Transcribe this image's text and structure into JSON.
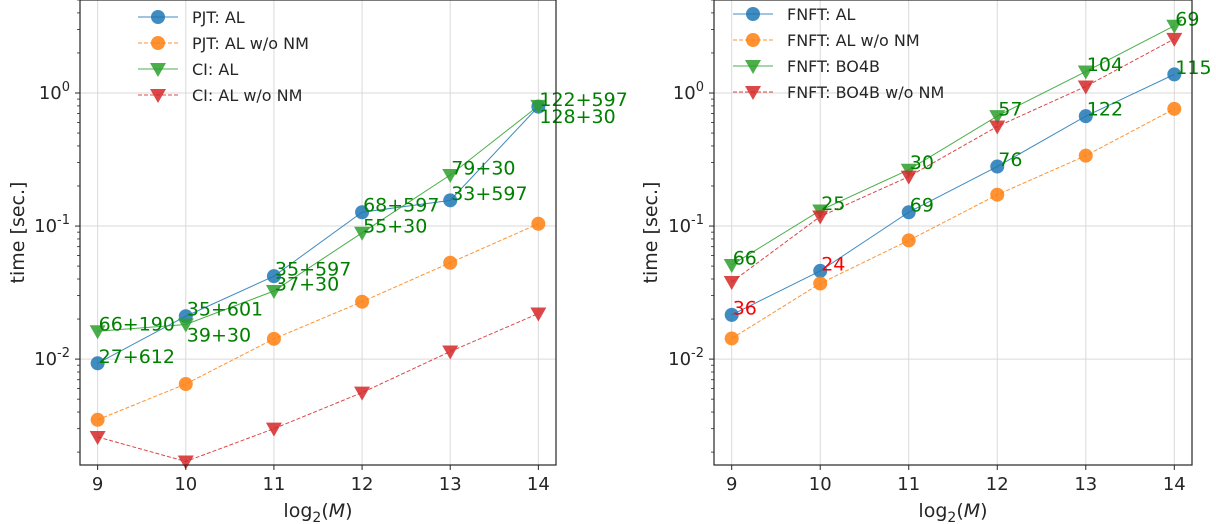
{
  "chart_data": [
    {
      "type": "line",
      "xlabel": "log2(M)",
      "ylabel": "time [sec.]",
      "yscale": "log",
      "xlim": [
        8.8,
        14.2
      ],
      "ylim": [
        0.0016,
        5.0
      ],
      "x": [
        9,
        10,
        11,
        12,
        13,
        14
      ],
      "grid": true,
      "legend_position": "upper-left",
      "series": [
        {
          "name": "PJT: AL",
          "color": "#1f77b4",
          "marker": "circle",
          "linestyle": "solid",
          "values": [
            0.0093,
            0.021,
            0.042,
            0.127,
            0.156,
            0.79
          ]
        },
        {
          "name": "PJT: AL w/o NM",
          "color": "#ff7f0e",
          "marker": "circle",
          "linestyle": "dashed",
          "values": [
            0.0035,
            0.0065,
            0.0142,
            0.027,
            0.053,
            0.104
          ]
        },
        {
          "name": "CI: AL",
          "color": "#2ca02c",
          "marker": "triangle-down",
          "linestyle": "solid",
          "values": [
            0.0162,
            0.0182,
            0.0325,
            0.089,
            0.242,
            0.8
          ]
        },
        {
          "name": "CI: AL w/o NM",
          "color": "#d62728",
          "marker": "triangle-down",
          "linestyle": "dashed",
          "values": [
            0.0026,
            0.0017,
            0.003,
            0.0056,
            0.0114,
            0.022
          ]
        }
      ],
      "annotations": [
        {
          "text": "27+612",
          "x": 9,
          "y": 0.0093,
          "dy": -0.5,
          "color": "#008000"
        },
        {
          "text": "66+190",
          "x": 9,
          "y": 0.0162,
          "dy": -0.5,
          "color": "#008000"
        },
        {
          "text": "35+601",
          "x": 10,
          "y": 0.021,
          "dy": -0.5,
          "color": "#008000"
        },
        {
          "text": "39+30",
          "x": 10,
          "y": 0.0182,
          "dy": 17,
          "color": "#008000"
        },
        {
          "text": "35+597",
          "x": 11,
          "y": 0.042,
          "dy": -0.5,
          "color": "#008000"
        },
        {
          "text": "37+30",
          "x": 11,
          "y": 0.0325,
          "dy": -0.5,
          "color": "#008000"
        },
        {
          "text": "68+597",
          "x": 12,
          "y": 0.127,
          "dy": -0.5,
          "color": "#008000"
        },
        {
          "text": "55+30",
          "x": 12,
          "y": 0.089,
          "dy": -0.5,
          "color": "#008000"
        },
        {
          "text": "79+30",
          "x": 13,
          "y": 0.242,
          "dy": -0.5,
          "color": "#008000"
        },
        {
          "text": "33+597",
          "x": 13,
          "y": 0.156,
          "dy": -0.5,
          "color": "#008000"
        },
        {
          "text": "122+597",
          "x": 14,
          "y": 0.79,
          "dy": -0.5,
          "color": "#008000"
        },
        {
          "text": "128+30",
          "x": 14,
          "y": 0.8,
          "dy": 17,
          "color": "#008000"
        }
      ]
    },
    {
      "type": "line",
      "xlabel": "log2(M)",
      "ylabel": "time [sec.]",
      "yscale": "log",
      "xlim": [
        8.8,
        14.2
      ],
      "ylim": [
        0.0016,
        5.0
      ],
      "x": [
        9,
        10,
        11,
        12,
        13,
        14
      ],
      "grid": true,
      "legend_position": "upper-left",
      "series": [
        {
          "name": "FNFT: AL",
          "color": "#1f77b4",
          "marker": "circle",
          "linestyle": "solid",
          "values": [
            0.0215,
            0.046,
            0.127,
            0.28,
            0.67,
            1.38
          ]
        },
        {
          "name": "FNFT: AL w/o NM",
          "color": "#ff7f0e",
          "marker": "circle",
          "linestyle": "dashed",
          "values": [
            0.0143,
            0.037,
            0.078,
            0.172,
            0.338,
            0.76
          ]
        },
        {
          "name": "FNFT: BO4B",
          "color": "#2ca02c",
          "marker": "triangle-down",
          "linestyle": "solid",
          "values": [
            0.051,
            0.131,
            0.265,
            0.67,
            1.45,
            3.2
          ]
        },
        {
          "name": "FNFT: BO4B w/o NM",
          "color": "#d62728",
          "marker": "triangle-down",
          "linestyle": "dashed",
          "values": [
            0.038,
            0.118,
            0.235,
            0.56,
            1.12,
            2.55
          ]
        }
      ],
      "annotations": [
        {
          "text": "36",
          "x": 9,
          "y": 0.0215,
          "dy": -0.5,
          "color": "#ff0000"
        },
        {
          "text": "66",
          "x": 9,
          "y": 0.051,
          "dy": -0.5,
          "color": "#008000"
        },
        {
          "text": "24",
          "x": 10,
          "y": 0.046,
          "dy": -0.5,
          "color": "#ff0000"
        },
        {
          "text": "25",
          "x": 10,
          "y": 0.131,
          "dy": -0.5,
          "color": "#008000"
        },
        {
          "text": "69",
          "x": 11,
          "y": 0.127,
          "dy": -0.5,
          "color": "#008000"
        },
        {
          "text": "30",
          "x": 11,
          "y": 0.265,
          "dy": -0.5,
          "color": "#008000"
        },
        {
          "text": "76",
          "x": 12,
          "y": 0.28,
          "dy": -0.5,
          "color": "#008000"
        },
        {
          "text": "57",
          "x": 12,
          "y": 0.67,
          "dy": -0.5,
          "color": "#008000"
        },
        {
          "text": "122",
          "x": 13,
          "y": 0.67,
          "dy": -0.5,
          "color": "#008000"
        },
        {
          "text": "104",
          "x": 13,
          "y": 1.45,
          "dy": -0.5,
          "color": "#008000"
        },
        {
          "text": "115",
          "x": 14,
          "y": 1.38,
          "dy": -0.5,
          "color": "#008000"
        },
        {
          "text": "69",
          "x": 14,
          "y": 3.2,
          "dy": -0.5,
          "color": "#008000"
        }
      ]
    }
  ]
}
